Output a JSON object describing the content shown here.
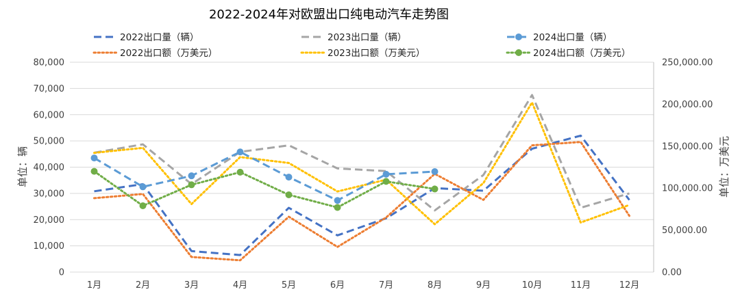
{
  "chart_data": {
    "type": "line",
    "title": "2022-2024年对欧盟出口纯电动汽车走势图",
    "categories": [
      "1月",
      "2月",
      "3月",
      "4月",
      "5月",
      "6月",
      "7月",
      "8月",
      "9月",
      "10月",
      "11月",
      "12月"
    ],
    "y_left": {
      "label": "单位：辆",
      "range": [
        0,
        80000
      ],
      "ticks": [
        0,
        10000,
        20000,
        30000,
        40000,
        50000,
        60000,
        70000,
        80000
      ],
      "tick_labels": [
        "0",
        "10,000",
        "20,000",
        "30,000",
        "40,000",
        "50,000",
        "60,000",
        "70,000",
        "80,000"
      ]
    },
    "y_right": {
      "label": "单位：万美元",
      "range": [
        0,
        250000
      ],
      "ticks": [
        0,
        50000,
        100000,
        150000,
        200000,
        250000
      ],
      "tick_labels": [
        "0.00",
        "50,000.00",
        "100,000.00",
        "150,000.00",
        "200,000.00",
        "250,000.00"
      ]
    },
    "grid": true,
    "legend_position": "top",
    "series": [
      {
        "name": "2022出口量（辆）",
        "axis": "left",
        "color": "#4472C4",
        "style": "dash",
        "marker": false,
        "values": [
          30800,
          33500,
          8000,
          6500,
          24500,
          14000,
          20500,
          32000,
          31000,
          47000,
          52000,
          27500
        ]
      },
      {
        "name": "2023出口量（辆）",
        "axis": "left",
        "color": "#A5A5A5",
        "style": "dash",
        "marker": false,
        "values": [
          45500,
          48700,
          33500,
          45800,
          48300,
          39500,
          38500,
          23500,
          37000,
          67500,
          24500,
          30000
        ]
      },
      {
        "name": "2024出口量（辆）",
        "axis": "left",
        "color": "#5B9BD5",
        "style": "dash",
        "marker": true,
        "values": [
          43500,
          32500,
          36700,
          45800,
          36200,
          27300,
          37300,
          38300,
          null,
          null,
          null,
          null
        ]
      },
      {
        "name": "2022出口额（万美元）",
        "axis": "right",
        "color": "#ED7D31",
        "style": "dot",
        "marker": false,
        "values": [
          88000,
          93000,
          18000,
          14000,
          66000,
          30000,
          65000,
          117000,
          86000,
          151000,
          155000,
          67000
        ]
      },
      {
        "name": "2023出口额（万美元）",
        "axis": "right",
        "color": "#FFC000",
        "style": "dot",
        "marker": false,
        "values": [
          142000,
          148000,
          81000,
          137000,
          130000,
          96000,
          110000,
          57000,
          106000,
          202000,
          59000,
          80000
        ]
      },
      {
        "name": "2024出口额（万美元）",
        "axis": "right",
        "color": "#70AD47",
        "style": "dot",
        "marker": true,
        "values": [
          120000,
          79000,
          104000,
          119000,
          92000,
          77000,
          108000,
          99000,
          null,
          null,
          null,
          null
        ]
      }
    ]
  }
}
